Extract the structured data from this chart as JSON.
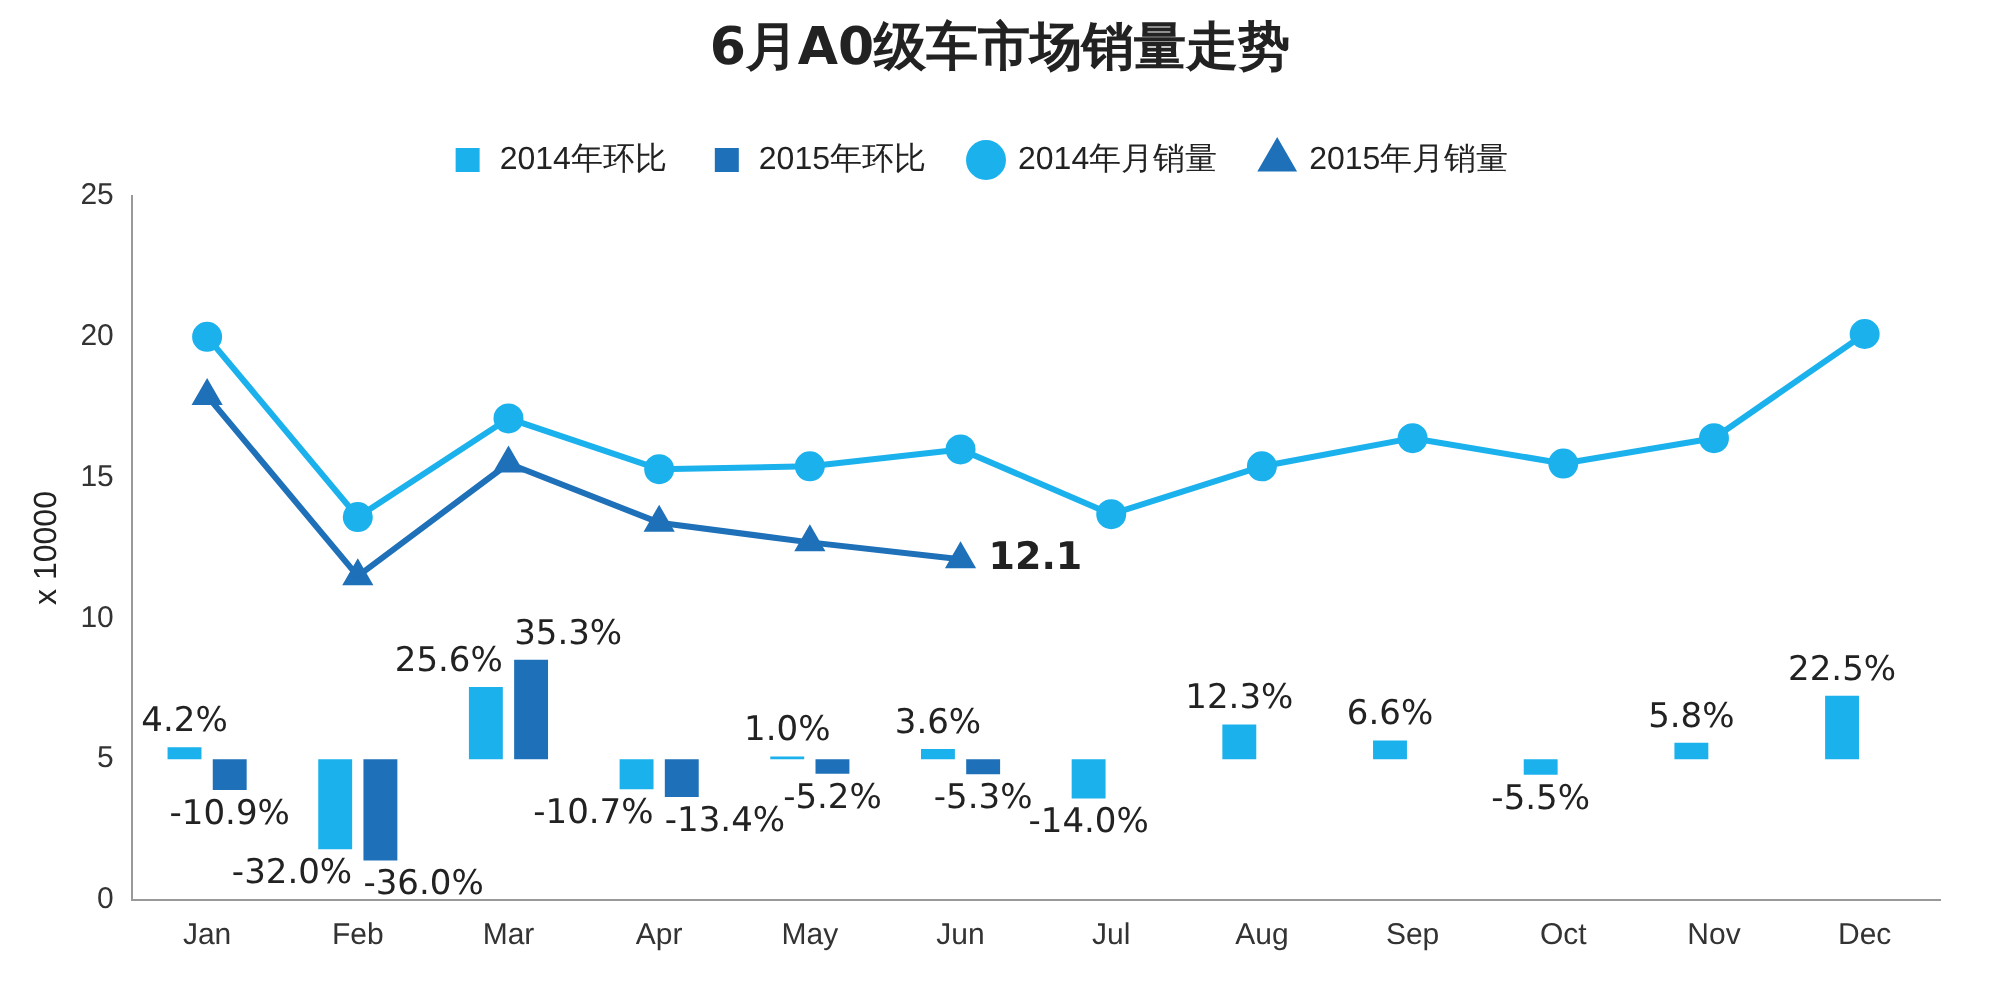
{
  "chart_data": {
    "type": "bar",
    "title": "6月A0级车市场销量走势",
    "ylabel": "x 10000",
    "categories": [
      "Jan",
      "Feb",
      "Mar",
      "Apr",
      "May",
      "Jun",
      "Jul",
      "Aug",
      "Sep",
      "Oct",
      "Nov",
      "Dec"
    ],
    "ylim": [
      0,
      25
    ],
    "yticks": [
      0,
      5,
      10,
      15,
      20,
      25
    ],
    "y2lim": [
      -50,
      200
    ],
    "legend": "top",
    "grid": false,
    "series": [
      {
        "name": "2014年环比",
        "type": "bar",
        "axis": "y2",
        "color": "#1bb1ec",
        "values": [
          4.2,
          -32.0,
          25.6,
          -10.7,
          1.0,
          3.6,
          -14.0,
          12.3,
          6.6,
          -5.5,
          5.8,
          22.5
        ],
        "value_labels": [
          "4.2%",
          "-32.0%",
          "25.6%",
          "-10.7%",
          "1.0%",
          "3.6%",
          "-14.0%",
          "12.3%",
          "6.6%",
          "-5.5%",
          "5.8%",
          "22.5%"
        ]
      },
      {
        "name": "2015年环比",
        "type": "bar",
        "axis": "y2",
        "color": "#1e70b8",
        "values": [
          -10.9,
          -36.0,
          35.3,
          -13.4,
          -5.2,
          -5.3,
          null,
          null,
          null,
          null,
          null,
          null
        ],
        "value_labels": [
          "-10.9%",
          "-36.0%",
          "35.3%",
          "-13.4%",
          "-5.2%",
          "-5.3%",
          null,
          null,
          null,
          null,
          null,
          null
        ]
      },
      {
        "name": "2014年月销量",
        "type": "line",
        "marker": "circle",
        "color": "#1bb1ec",
        "values": [
          20.0,
          13.6,
          17.1,
          15.3,
          15.4,
          16.0,
          13.7,
          15.4,
          16.4,
          15.5,
          16.4,
          20.1
        ]
      },
      {
        "name": "2015年月销量",
        "type": "line",
        "marker": "triangle",
        "color": "#1e70b8",
        "values": [
          17.9,
          11.5,
          15.5,
          13.4,
          12.7,
          12.1,
          null,
          null,
          null,
          null,
          null,
          null
        ],
        "value_labels": [
          null,
          null,
          null,
          null,
          null,
          "12.1",
          null,
          null,
          null,
          null,
          null,
          null
        ]
      }
    ]
  }
}
